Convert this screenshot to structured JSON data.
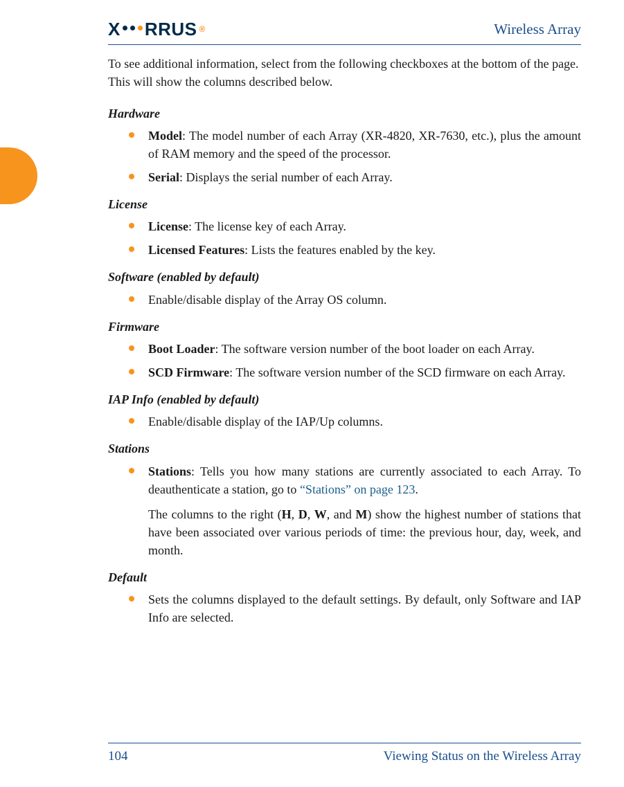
{
  "header": {
    "logo_left": "X",
    "logo_right": "RRUS",
    "title": "Wireless Array"
  },
  "intro": "To see additional information, select from the following checkboxes at the bottom of the page. This will show the columns described below.",
  "sections": {
    "hardware": {
      "heading": "Hardware",
      "items": {
        "model": {
          "term": "Model",
          "desc": ": The model number of each Array (XR-4820, XR-7630, etc.), plus the amount of RAM memory and the speed of the processor."
        },
        "serial": {
          "term": "Serial",
          "desc": ": Displays the serial number of each Array."
        }
      }
    },
    "license": {
      "heading": "License",
      "items": {
        "license": {
          "term": "License",
          "desc": ": The license key of each Array."
        },
        "features": {
          "term": "Licensed Features",
          "desc": ": Lists the features enabled by the key."
        }
      }
    },
    "software": {
      "heading": "Software (enabled by default)",
      "items": {
        "row": "Enable/disable display of the Array OS column."
      }
    },
    "firmware": {
      "heading": "Firmware",
      "items": {
        "boot": {
          "term": "Boot Loader",
          "desc": ": The software version number of the boot loader on each Array."
        },
        "scd": {
          "term": "SCD Firmware",
          "desc": ": The software version number of the SCD firmware on each Array."
        }
      }
    },
    "iap": {
      "heading": "IAP Info (enabled by default)",
      "items": {
        "row": "Enable/disable display of the IAP/Up columns."
      }
    },
    "stations": {
      "heading": "Stations",
      "items": {
        "stations": {
          "term": "Stations",
          "desc_pre": ": Tells you how many stations are currently associated to each Array. To deauthenticate a station, go to ",
          "xref": "“Stations” on page 123",
          "desc_post": "."
        },
        "para2_pre": "The columns to the right (",
        "h": "H",
        "c1": ", ",
        "d": "D",
        "c2": ", ",
        "w": "W",
        "c3": ", and ",
        "m": "M",
        "para2_post": ") show the highest number of stations that have been associated over various periods of time: the previous hour, day, week, and month."
      }
    },
    "default": {
      "heading": "Default",
      "items": {
        "row": "Sets the columns displayed to the default settings. By default, only Software and IAP Info are selected."
      }
    }
  },
  "footer": {
    "page": "104",
    "section": "Viewing Status on the Wireless Array"
  },
  "colors": {
    "accent": "#f7941e",
    "navy": "#002b49",
    "rule": "#1a4e8c",
    "xref": "#1a5f8c"
  }
}
